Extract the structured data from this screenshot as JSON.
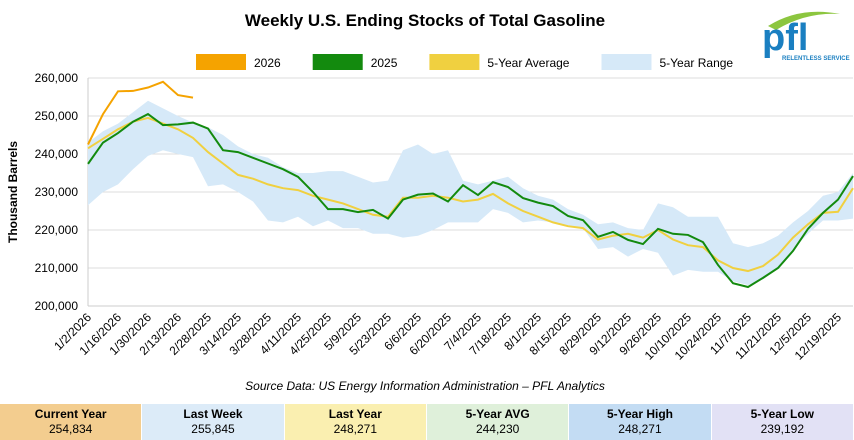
{
  "chart_data": {
    "type": "line",
    "title": "Weekly U.S. Ending Stocks of Total Gasoline",
    "y_label": "Thousand Barrels",
    "source": "Source Data: US Energy Information Administration – PFL Analytics",
    "categories": [
      "1/2/2026",
      null,
      "1/16/2026",
      null,
      "1/30/2026",
      null,
      "2/13/2026",
      null,
      "2/28/2025",
      null,
      "3/14/2025",
      null,
      "3/28/2025",
      null,
      "4/11/2025",
      null,
      "4/25/2025",
      null,
      "5/9/2025",
      null,
      "5/23/2025",
      null,
      "6/6/2025",
      null,
      "6/20/2025",
      null,
      "7/4/2025",
      null,
      "7/18/2025",
      null,
      "8/1/2025",
      null,
      "8/15/2025",
      null,
      "8/29/2025",
      null,
      "9/12/2025",
      null,
      "9/26/2025",
      null,
      "10/10/2025",
      null,
      "10/24/2025",
      null,
      "11/7/2025",
      null,
      "11/21/2025",
      null,
      "12/5/2025",
      null,
      "12/19/2025",
      null
    ],
    "ylim": [
      200000,
      260000
    ],
    "yticks": [
      {
        "value": 200000,
        "label": "200,000"
      },
      {
        "value": 210000,
        "label": "210,000"
      },
      {
        "value": 220000,
        "label": "220,000"
      },
      {
        "value": 230000,
        "label": "230,000"
      },
      {
        "value": 240000,
        "label": "240,000"
      },
      {
        "value": 250000,
        "label": "250,000"
      },
      {
        "value": 260000,
        "label": "260,000"
      }
    ],
    "grid": true,
    "legend": "top",
    "series": [
      {
        "name": "2026",
        "color": "#f5a300",
        "values": [
          242500,
          250500,
          256500,
          256600,
          257500,
          259000,
          255500,
          254834,
          null,
          null,
          null,
          null,
          null,
          null,
          null,
          null,
          null,
          null,
          null,
          null,
          null,
          null,
          null,
          null,
          null,
          null,
          null,
          null,
          null,
          null,
          null,
          null,
          null,
          null,
          null,
          null,
          null,
          null,
          null,
          null,
          null,
          null,
          null,
          null,
          null,
          null,
          null,
          null,
          null,
          null,
          null,
          null
        ]
      },
      {
        "name": "2025",
        "color": "#138a0e",
        "values": [
          237400,
          243000,
          245500,
          248500,
          250500,
          247600,
          247800,
          248271,
          246700,
          241000,
          240500,
          239000,
          237500,
          236000,
          234000,
          230000,
          225500,
          225500,
          224700,
          225300,
          223000,
          228000,
          229300,
          229600,
          227500,
          231800,
          229200,
          232600,
          231300,
          228400,
          227200,
          226300,
          223700,
          222600,
          218200,
          219500,
          217400,
          216300,
          220300,
          219000,
          218700,
          216800,
          210800,
          206000,
          205000,
          207400,
          210000,
          214500,
          220300,
          224500,
          228000,
          234200
        ]
      },
      {
        "name": "5-Year Average",
        "color": "#f0d040",
        "values": [
          241500,
          244000,
          246500,
          248500,
          249500,
          248000,
          246500,
          244230,
          240500,
          237500,
          234500,
          233500,
          232000,
          231000,
          230500,
          229000,
          228000,
          227000,
          225500,
          224000,
          223500,
          228500,
          228500,
          229000,
          228500,
          227500,
          228000,
          229500,
          227000,
          225000,
          223500,
          222000,
          221000,
          220500,
          217500,
          218500,
          219000,
          218000,
          220000,
          217500,
          216000,
          215500,
          212000,
          210000,
          209200,
          210500,
          213500,
          218000,
          221500,
          224500,
          224800,
          231000
        ]
      },
      {
        "name": "5-Year Range",
        "color": "#d6e9f8",
        "type": "range",
        "high": [
          243000,
          246000,
          248000,
          251000,
          254000,
          252000,
          250000,
          248271,
          247000,
          245000,
          242000,
          240000,
          239000,
          236500,
          235000,
          235000,
          235500,
          235500,
          234000,
          232500,
          233000,
          241000,
          242500,
          240000,
          241000,
          233000,
          232000,
          233000,
          234000,
          231000,
          229000,
          228000,
          225500,
          224000,
          221500,
          222000,
          220500,
          220000,
          227000,
          226000,
          223500,
          223500,
          223500,
          216500,
          215500,
          216500,
          218500,
          222000,
          225000,
          229000,
          230000,
          235000
        ],
        "low": [
          226500,
          230000,
          232000,
          236000,
          239500,
          241000,
          240000,
          239192,
          231500,
          232000,
          230000,
          227500,
          222500,
          222000,
          223500,
          221000,
          222500,
          220500,
          220500,
          219000,
          219000,
          218000,
          218500,
          220000,
          222000,
          222000,
          222000,
          225500,
          224500,
          222000,
          222500,
          222000,
          221000,
          220500,
          215000,
          215500,
          213000,
          215000,
          214000,
          208000,
          209500,
          209000,
          209000,
          206500,
          205500,
          207000,
          210000,
          215000,
          219000,
          222500,
          222500,
          223000
        ]
      }
    ]
  },
  "logo": {
    "name": "pfl",
    "tagline": "RELENTLESS SERVICE"
  },
  "summary": [
    {
      "label": "Current Year",
      "value": "254,834",
      "color": "#f3cd8f"
    },
    {
      "label": "Last Week",
      "value": "255,845",
      "color": "#dcebf8"
    },
    {
      "label": "Last Year",
      "value": "248,271",
      "color": "#faefb0"
    },
    {
      "label": "5-Year AVG",
      "value": "244,230",
      "color": "#dff0da"
    },
    {
      "label": "5-Year High",
      "value": "248,271",
      "color": "#c3dcf3"
    },
    {
      "label": "5-Year Low",
      "value": "239,192",
      "color": "#e2e1f5"
    }
  ]
}
